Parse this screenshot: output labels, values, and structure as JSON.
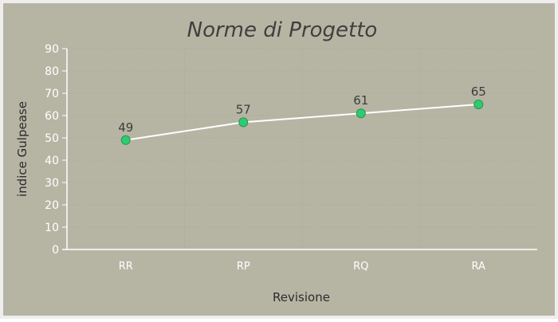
{
  "chart_data": {
    "type": "line",
    "title": "Norme di Progetto",
    "xlabel": "Revisione",
    "ylabel": "indice Gulpease",
    "categories": [
      "RR",
      "RP",
      "RQ",
      "RA"
    ],
    "series": [
      {
        "values": [
          49,
          57,
          61,
          65
        ]
      }
    ],
    "ylim": [
      0,
      90
    ],
    "yticks": [
      0,
      10,
      20,
      30,
      40,
      50,
      60,
      70,
      80,
      90
    ],
    "grid": true,
    "data_labels": true,
    "legend": "none"
  },
  "colors": {
    "background": "#b6b5a4",
    "frame": "#eeeeee",
    "line": "#ffffff",
    "marker": "#2ecc71",
    "marker_stroke": "#27924f",
    "axis": "#ffffff",
    "gridline": "#a9a898"
  }
}
